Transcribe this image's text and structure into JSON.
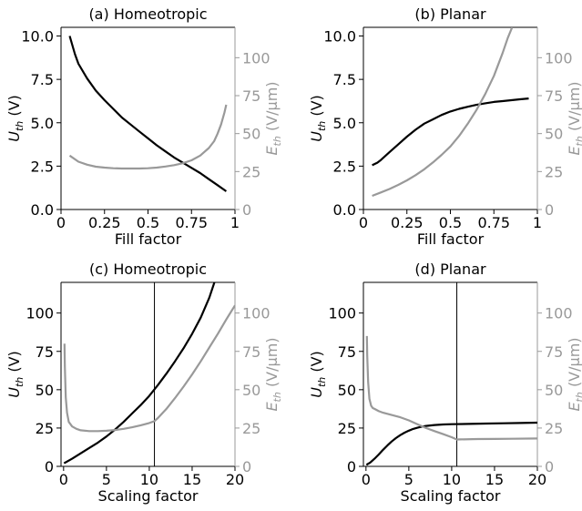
{
  "chart_data": [
    {
      "type": "line",
      "title": "(a) Homeotropic",
      "xlabel": "Fill factor",
      "ylabel_left": "U_th (V)",
      "ylabel_right": "E_th (V/μm)",
      "xlim": [
        0,
        1
      ],
      "ylim_left": [
        0,
        10.5
      ],
      "ylim_right": [
        0,
        120
      ],
      "xticks": [
        "0",
        "0.25",
        "0.5",
        "0.75",
        "1"
      ],
      "yticks_left": [
        "0.0",
        "2.5",
        "5.0",
        "7.5",
        "10.0"
      ],
      "yticks_right": [
        "0",
        "25",
        "50",
        "75",
        "100"
      ],
      "grid": false,
      "colors": {
        "left": "#000000",
        "right": "#999999"
      },
      "series": [
        {
          "axis": "left",
          "x": [
            0.05,
            0.08,
            0.1,
            0.15,
            0.2,
            0.25,
            0.3,
            0.35,
            0.4,
            0.45,
            0.5,
            0.55,
            0.6,
            0.65,
            0.7,
            0.75,
            0.8,
            0.85,
            0.9,
            0.95
          ],
          "y": [
            10.0,
            8.95,
            8.4,
            7.55,
            6.85,
            6.3,
            5.8,
            5.3,
            4.9,
            4.5,
            4.1,
            3.7,
            3.35,
            3.0,
            2.7,
            2.4,
            2.1,
            1.75,
            1.4,
            1.05
          ]
        },
        {
          "axis": "right",
          "x": [
            0.05,
            0.1,
            0.15,
            0.2,
            0.25,
            0.3,
            0.35,
            0.4,
            0.45,
            0.5,
            0.55,
            0.6,
            0.65,
            0.7,
            0.75,
            0.8,
            0.85,
            0.88,
            0.9,
            0.92,
            0.94,
            0.95
          ],
          "y": [
            35.5,
            31.5,
            29.5,
            28.2,
            27.6,
            27.2,
            27.0,
            27.0,
            27.0,
            27.2,
            27.6,
            28.3,
            29.2,
            30.5,
            32.4,
            35.5,
            40.5,
            45,
            50,
            56,
            64,
            69
          ]
        }
      ]
    },
    {
      "type": "line",
      "title": "(b) Planar",
      "xlabel": "Fill factor",
      "ylabel_left": "U_th (V)",
      "ylabel_right": "E_th (V/μm)",
      "xlim": [
        0,
        1
      ],
      "ylim_left": [
        0,
        10.5
      ],
      "ylim_right": [
        0,
        120
      ],
      "xticks": [
        "0",
        "0.25",
        "0.5",
        "0.75",
        "1"
      ],
      "yticks_left": [
        "0.0",
        "2.5",
        "5.0",
        "7.5",
        "10.0"
      ],
      "yticks_right": [
        "0",
        "25",
        "50",
        "75",
        "100"
      ],
      "grid": false,
      "colors": {
        "left": "#000000",
        "right": "#999999"
      },
      "series": [
        {
          "axis": "left",
          "x": [
            0.05,
            0.08,
            0.1,
            0.15,
            0.2,
            0.25,
            0.3,
            0.35,
            0.4,
            0.45,
            0.5,
            0.55,
            0.6,
            0.65,
            0.7,
            0.75,
            0.8,
            0.85,
            0.9,
            0.95
          ],
          "y": [
            2.55,
            2.7,
            2.85,
            3.3,
            3.75,
            4.2,
            4.6,
            4.95,
            5.2,
            5.45,
            5.65,
            5.8,
            5.92,
            6.03,
            6.12,
            6.2,
            6.25,
            6.3,
            6.35,
            6.4
          ]
        },
        {
          "axis": "right",
          "x": [
            0.05,
            0.1,
            0.15,
            0.2,
            0.25,
            0.3,
            0.35,
            0.4,
            0.45,
            0.5,
            0.55,
            0.6,
            0.65,
            0.7,
            0.75,
            0.8,
            0.83,
            0.855
          ],
          "y": [
            9.0,
            11.2,
            13.5,
            16.2,
            19.2,
            22.6,
            26.5,
            31.0,
            36.0,
            41.5,
            48.5,
            56.5,
            65.5,
            76.0,
            88.0,
            103.0,
            113.0,
            120.0
          ]
        }
      ]
    },
    {
      "type": "line",
      "title": "(c) Homeotropic",
      "xlabel": "Scaling factor",
      "ylabel_left": "U_th (V)",
      "ylabel_right": "E_th (V/μm)",
      "xlim": [
        -0.3,
        20
      ],
      "ylim_left": [
        0,
        120
      ],
      "ylim_right": [
        0,
        120
      ],
      "xticks": [
        "0",
        "5",
        "10",
        "15",
        "20"
      ],
      "yticks_left": [
        "0",
        "25",
        "50",
        "75",
        "100"
      ],
      "yticks_right": [
        "0",
        "25",
        "50",
        "75",
        "100"
      ],
      "vline_x": 10.6,
      "grid": false,
      "colors": {
        "left": "#000000",
        "right": "#999999",
        "vline": "#000000"
      },
      "series": [
        {
          "axis": "left",
          "x": [
            0.05,
            1,
            2,
            3,
            4,
            5,
            6,
            7,
            8,
            9,
            10,
            11,
            12,
            13,
            14,
            15,
            16,
            17,
            17.6
          ],
          "y": [
            2,
            5,
            8.5,
            12,
            15.5,
            19.5,
            24,
            29,
            34.5,
            40,
            46,
            53,
            60.5,
            68.5,
            77,
            86.5,
            97,
            110,
            120
          ]
        },
        {
          "axis": "right",
          "x": [
            0.1,
            0.15,
            0.25,
            0.4,
            0.6,
            1,
            1.5,
            2,
            3,
            4,
            5,
            6,
            7,
            8,
            9,
            10,
            10.6,
            11,
            12,
            13,
            14,
            15,
            16,
            17,
            18,
            19,
            20
          ],
          "y": [
            80,
            65,
            45,
            35,
            29,
            26,
            24.5,
            23.5,
            23,
            23,
            23.2,
            23.7,
            24.5,
            25.5,
            26.8,
            28.3,
            29.5,
            31.5,
            37.5,
            44.5,
            52,
            60,
            68.5,
            77.5,
            86.5,
            96,
            105
          ]
        }
      ]
    },
    {
      "type": "line",
      "title": "(d) Planar",
      "xlabel": "Scaling factor",
      "ylabel_left": "U_th (V)",
      "ylabel_right": "E_th (V/μm)",
      "xlim": [
        -0.3,
        20
      ],
      "ylim_left": [
        0,
        120
      ],
      "ylim_right": [
        0,
        120
      ],
      "xticks": [
        "0",
        "5",
        "10",
        "15",
        "20"
      ],
      "yticks_left": [
        "0",
        "25",
        "50",
        "75",
        "100"
      ],
      "yticks_right": [
        "0",
        "25",
        "50",
        "75",
        "100"
      ],
      "vline_x": 10.6,
      "grid": false,
      "colors": {
        "left": "#000000",
        "right": "#999999",
        "vline": "#000000"
      },
      "series": [
        {
          "axis": "left",
          "x": [
            0.05,
            0.5,
            1,
            1.5,
            2,
            2.5,
            3,
            3.5,
            4,
            4.5,
            5,
            5.5,
            6,
            6.5,
            7,
            8,
            9,
            10,
            12,
            14,
            16,
            18,
            20
          ],
          "y": [
            1,
            2.5,
            5,
            7.8,
            10.8,
            13.6,
            16.2,
            18.5,
            20.4,
            22,
            23.3,
            24.4,
            25.2,
            25.9,
            26.4,
            27,
            27.3,
            27.5,
            27.7,
            27.9,
            28.1,
            28.3,
            28.5
          ]
        },
        {
          "axis": "right",
          "x": [
            0.1,
            0.15,
            0.25,
            0.4,
            0.6,
            0.8,
            1,
            1.5,
            2,
            3,
            4,
            5,
            6,
            7,
            8,
            9,
            10,
            10.6,
            11,
            13,
            15,
            17,
            20
          ],
          "y": [
            85,
            72,
            55,
            44,
            39.5,
            38,
            37.5,
            36,
            35,
            33.5,
            32,
            30,
            27.5,
            25,
            23,
            21,
            19,
            17.5,
            17.6,
            17.8,
            17.9,
            18,
            18.2
          ]
        }
      ]
    }
  ]
}
